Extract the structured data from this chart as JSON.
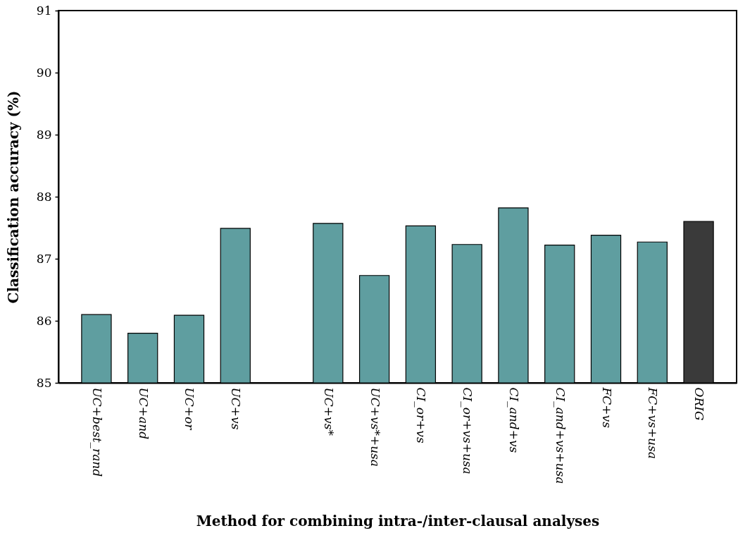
{
  "chart_data": {
    "type": "bar",
    "xlabel": "Method for combining intra-/inter-clausal analyses",
    "ylabel": "Classification accuracy (%)",
    "categories": [
      "UC+best_rand",
      "UC+and",
      "UC+or",
      "UC+vs",
      null,
      "UC+vs*",
      "UC+vs*+usa",
      "CI_or+vs",
      "CI_or+vs+usa",
      "CI_and+vs",
      "CI_and+vs+usa",
      "FC+vs",
      "FC+vs+usa",
      "ORIG"
    ],
    "values": [
      86.1,
      85.8,
      86.09,
      87.49,
      null,
      87.57,
      86.73,
      87.53,
      87.23,
      87.82,
      87.22,
      87.38,
      87.27,
      87.6
    ],
    "colors": [
      "#5f9ea0",
      "#5f9ea0",
      "#5f9ea0",
      "#5f9ea0",
      "#5f9ea0",
      "#5f9ea0",
      "#5f9ea0",
      "#5f9ea0",
      "#5f9ea0",
      "#5f9ea0",
      "#5f9ea0",
      "#5f9ea0",
      "#5f9ea0",
      "#3a3a3a"
    ],
    "ylim": [
      85,
      91
    ],
    "yticks": [
      85,
      86,
      87,
      88,
      89,
      90,
      91
    ],
    "grid": false
  }
}
